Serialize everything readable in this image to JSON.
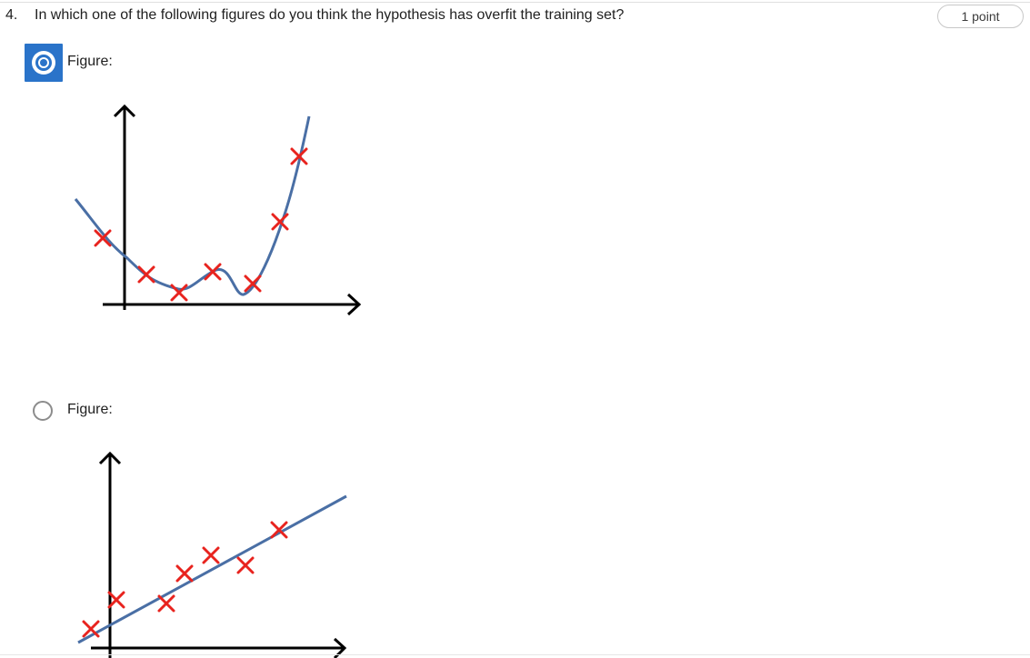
{
  "question": {
    "number": "4.",
    "text": "In which one of the following figures do you think the hypothesis has overfit the training set?",
    "points": "1 point"
  },
  "options": [
    {
      "label": "Figure:",
      "selected": true,
      "curve_color": "#4a6fa5",
      "marker_color": "#e8231e"
    },
    {
      "label": "Figure:",
      "selected": false,
      "curve_color": "#4a6fa5",
      "marker_color": "#e8231e"
    }
  ]
}
